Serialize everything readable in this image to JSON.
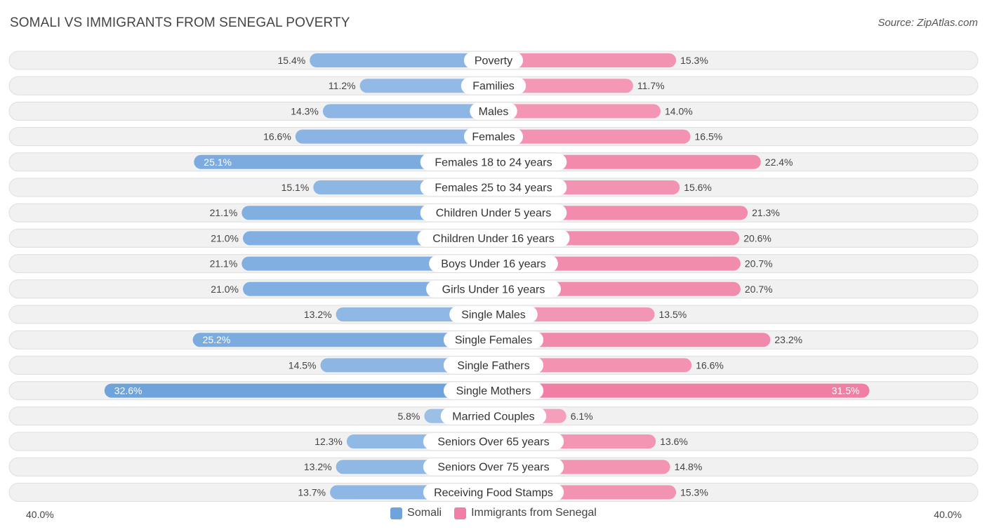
{
  "title": "SOMALI VS IMMIGRANTS FROM SENEGAL POVERTY",
  "source": "Source: ZipAtlas.com",
  "colors": {
    "left": "#6fa3dc",
    "right": "#f07fa3",
    "left_light": "#a9c8ec",
    "right_light": "#f6a9c2"
  },
  "chart_data": {
    "type": "bar",
    "orientation": "diverging-horizontal",
    "axis_max": 40.0,
    "axis_left_label": "40.0%",
    "axis_right_label": "40.0%",
    "series": [
      {
        "name": "Somali",
        "values": [
          15.4,
          11.2,
          14.3,
          16.6,
          25.1,
          15.1,
          21.1,
          21.0,
          21.1,
          21.0,
          13.2,
          25.2,
          14.5,
          32.6,
          5.8,
          12.3,
          13.2,
          13.7
        ]
      },
      {
        "name": "Immigrants from Senegal",
        "values": [
          15.3,
          11.7,
          14.0,
          16.5,
          22.4,
          15.6,
          21.3,
          20.6,
          20.7,
          20.7,
          13.5,
          23.2,
          16.6,
          31.5,
          6.1,
          13.6,
          14.8,
          15.3
        ]
      }
    ],
    "categories": [
      "Poverty",
      "Families",
      "Males",
      "Females",
      "Females 18 to 24 years",
      "Females 25 to 34 years",
      "Children Under 5 years",
      "Children Under 16 years",
      "Boys Under 16 years",
      "Girls Under 16 years",
      "Single Males",
      "Single Females",
      "Single Fathers",
      "Single Mothers",
      "Married Couples",
      "Seniors Over 65 years",
      "Seniors Over 75 years",
      "Receiving Food Stamps"
    ],
    "left_labels": [
      "15.4%",
      "11.2%",
      "14.3%",
      "16.6%",
      "25.1%",
      "15.1%",
      "21.1%",
      "21.0%",
      "21.1%",
      "21.0%",
      "13.2%",
      "25.2%",
      "14.5%",
      "32.6%",
      "5.8%",
      "12.3%",
      "13.2%",
      "13.7%"
    ],
    "right_labels": [
      "15.3%",
      "11.7%",
      "14.0%",
      "16.5%",
      "22.4%",
      "15.6%",
      "21.3%",
      "20.6%",
      "20.7%",
      "20.7%",
      "13.5%",
      "23.2%",
      "16.6%",
      "31.5%",
      "6.1%",
      "13.6%",
      "14.8%",
      "15.3%"
    ]
  }
}
